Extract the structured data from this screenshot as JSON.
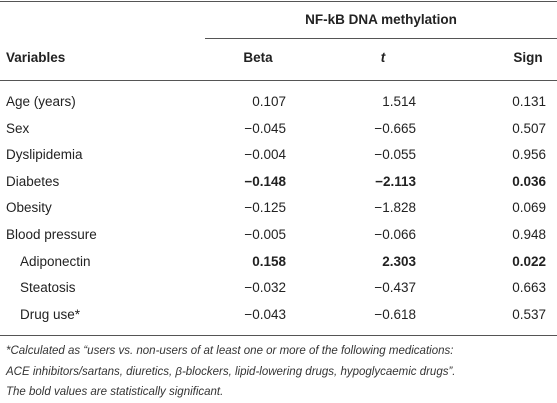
{
  "table": {
    "group_header": "NF-kB DNA methylation",
    "columns": [
      "Variables",
      "Beta",
      "t",
      "Sign"
    ],
    "rows": [
      {
        "cells": [
          "Age (years)",
          "0.107",
          "1.514",
          "0.131"
        ],
        "bold": false,
        "indent": false
      },
      {
        "cells": [
          "Sex",
          "−0.045",
          "−0.665",
          "0.507"
        ],
        "bold": false,
        "indent": false
      },
      {
        "cells": [
          "Dyslipidemia",
          "−0.004",
          "−0.055",
          "0.956"
        ],
        "bold": false,
        "indent": false
      },
      {
        "cells": [
          "Diabetes",
          "−0.148",
          "−2.113",
          "0.036"
        ],
        "bold": true,
        "indent": false
      },
      {
        "cells": [
          "Obesity",
          "−0.125",
          "−1.828",
          "0.069"
        ],
        "bold": false,
        "indent": false
      },
      {
        "cells": [
          "Blood pressure",
          "−0.005",
          "−0.066",
          "0.948"
        ],
        "bold": false,
        "indent": false
      },
      {
        "cells": [
          "Adiponectin",
          "0.158",
          "2.303",
          "0.022"
        ],
        "bold": true,
        "indent": true
      },
      {
        "cells": [
          "Steatosis",
          "−0.032",
          "−0.437",
          "0.663"
        ],
        "bold": false,
        "indent": true
      },
      {
        "cells": [
          "Drug use*",
          "−0.043",
          "−0.618",
          "0.537"
        ],
        "bold": false,
        "indent": true
      }
    ],
    "footnote": [
      "*Calculated as “users vs. non-users of at least one or more of the following medications:",
      "ACE inhibitors/sartans, diuretics, β-blockers, lipid-lowering drugs, hypoglycaemic drugs”.",
      "The bold values are statistically significant."
    ]
  }
}
